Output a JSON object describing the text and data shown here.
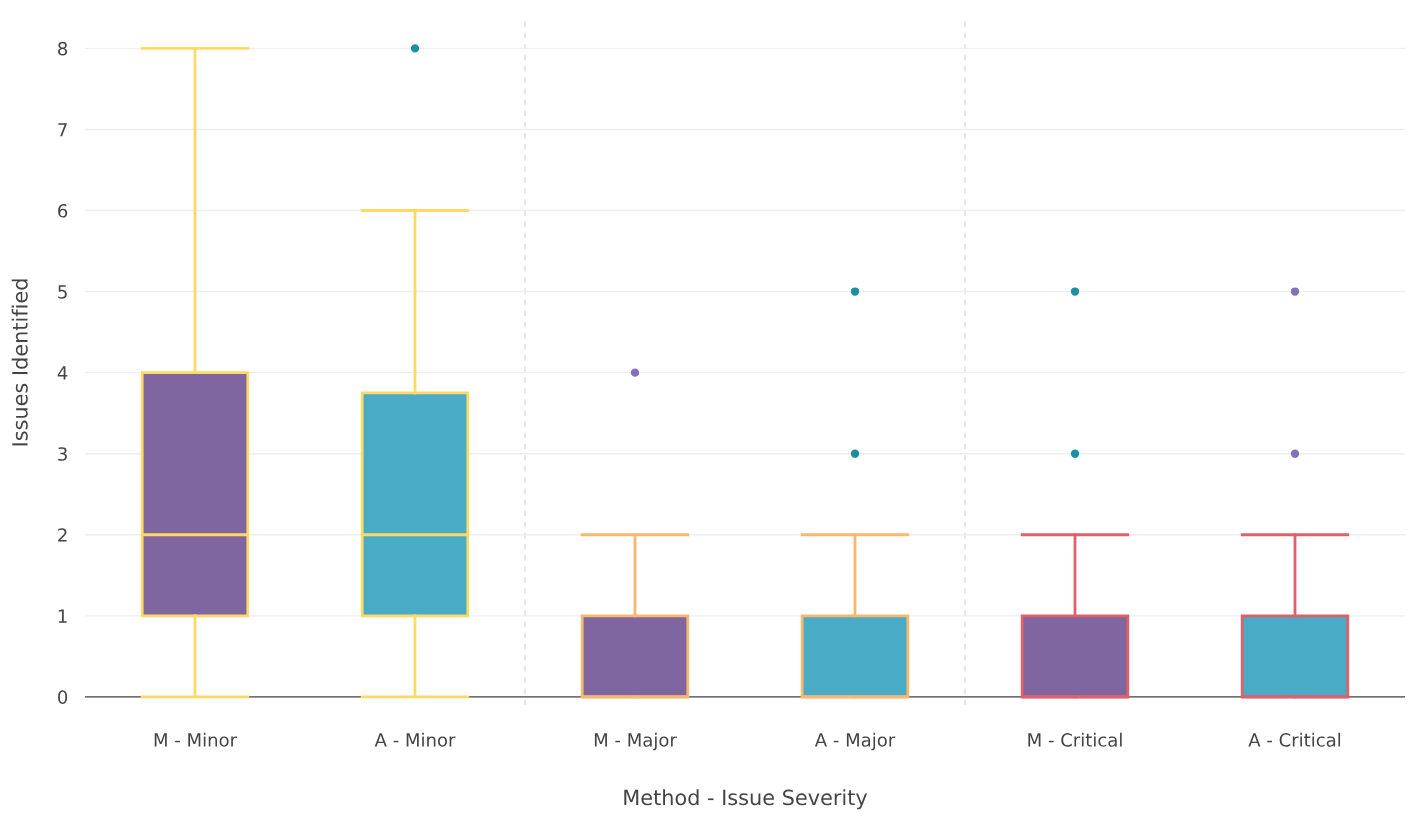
{
  "chart_data": {
    "type": "box",
    "xlabel": "Method - Issue Severity",
    "ylabel": "Issues Identified",
    "categories": [
      "M - Minor",
      "A - Minor",
      "M - Major",
      "A - Major",
      "M - Critical",
      "A - Critical"
    ],
    "boxes": [
      {
        "low": 0,
        "q1": 1,
        "median": 2,
        "q3": 4,
        "high": 8
      },
      {
        "low": 0,
        "q1": 1,
        "median": 2,
        "q3": 3.75,
        "high": 6,
        "outliers": [
          8
        ]
      },
      {
        "low": 0,
        "q1": 0,
        "median": 0,
        "q3": 1,
        "high": 2,
        "outliers": [
          4
        ]
      },
      {
        "low": 0,
        "q1": 0,
        "median": 0,
        "q3": 1,
        "high": 2,
        "outliers": [
          3,
          5
        ]
      },
      {
        "low": 0,
        "q1": 0,
        "median": 0,
        "q3": 1,
        "high": 2,
        "outliers": [
          3,
          5
        ]
      },
      {
        "low": 0,
        "q1": 0,
        "median": 0,
        "q3": 1,
        "high": 2,
        "outliers": [
          3,
          5
        ]
      }
    ],
    "colors": [
      "#8066a0",
      "#4aabc6",
      "#8066a0",
      "#4aabc6",
      "#8066a0",
      "#4aabc6"
    ],
    "ylim": [
      -0.1,
      8.35
    ],
    "yticks": [
      0,
      1,
      2,
      3,
      4,
      5,
      6,
      7,
      8
    ],
    "grid": "y"
  }
}
